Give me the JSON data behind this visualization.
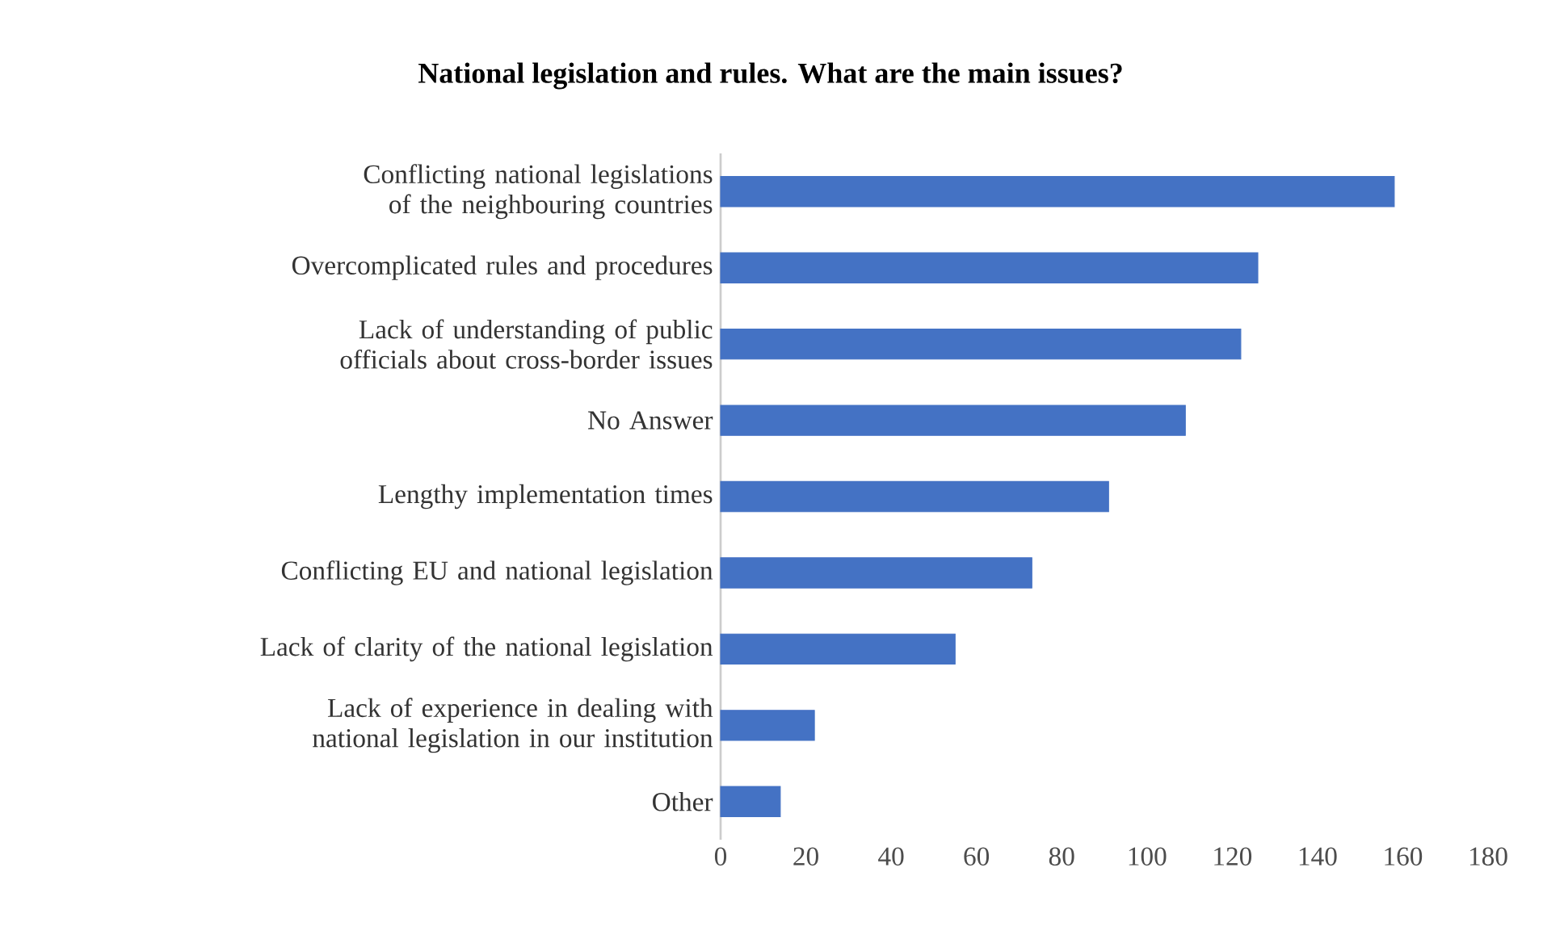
{
  "chart_data": {
    "type": "bar",
    "orientation": "horizontal",
    "title": "National legislation and rules. What are the main issues?",
    "categories": [
      "Conflicting national legislations of the neighbouring countries",
      "Overcomplicated rules and procedures",
      "Lack of understanding of public officials about cross-border issues",
      "No Answer",
      "Lengthy implementation times",
      "Conflicting EU and national legislation",
      "Lack of clarity of the national legislation",
      "Lack of experience in dealing with national legislation in our institution",
      "Other"
    ],
    "values": [
      158,
      126,
      122,
      109,
      91,
      73,
      55,
      22,
      14
    ],
    "color": "#4472c4",
    "xlim": [
      0,
      180
    ],
    "xticks": [
      0,
      20,
      40,
      60,
      80,
      100,
      120,
      140,
      160,
      180
    ]
  }
}
